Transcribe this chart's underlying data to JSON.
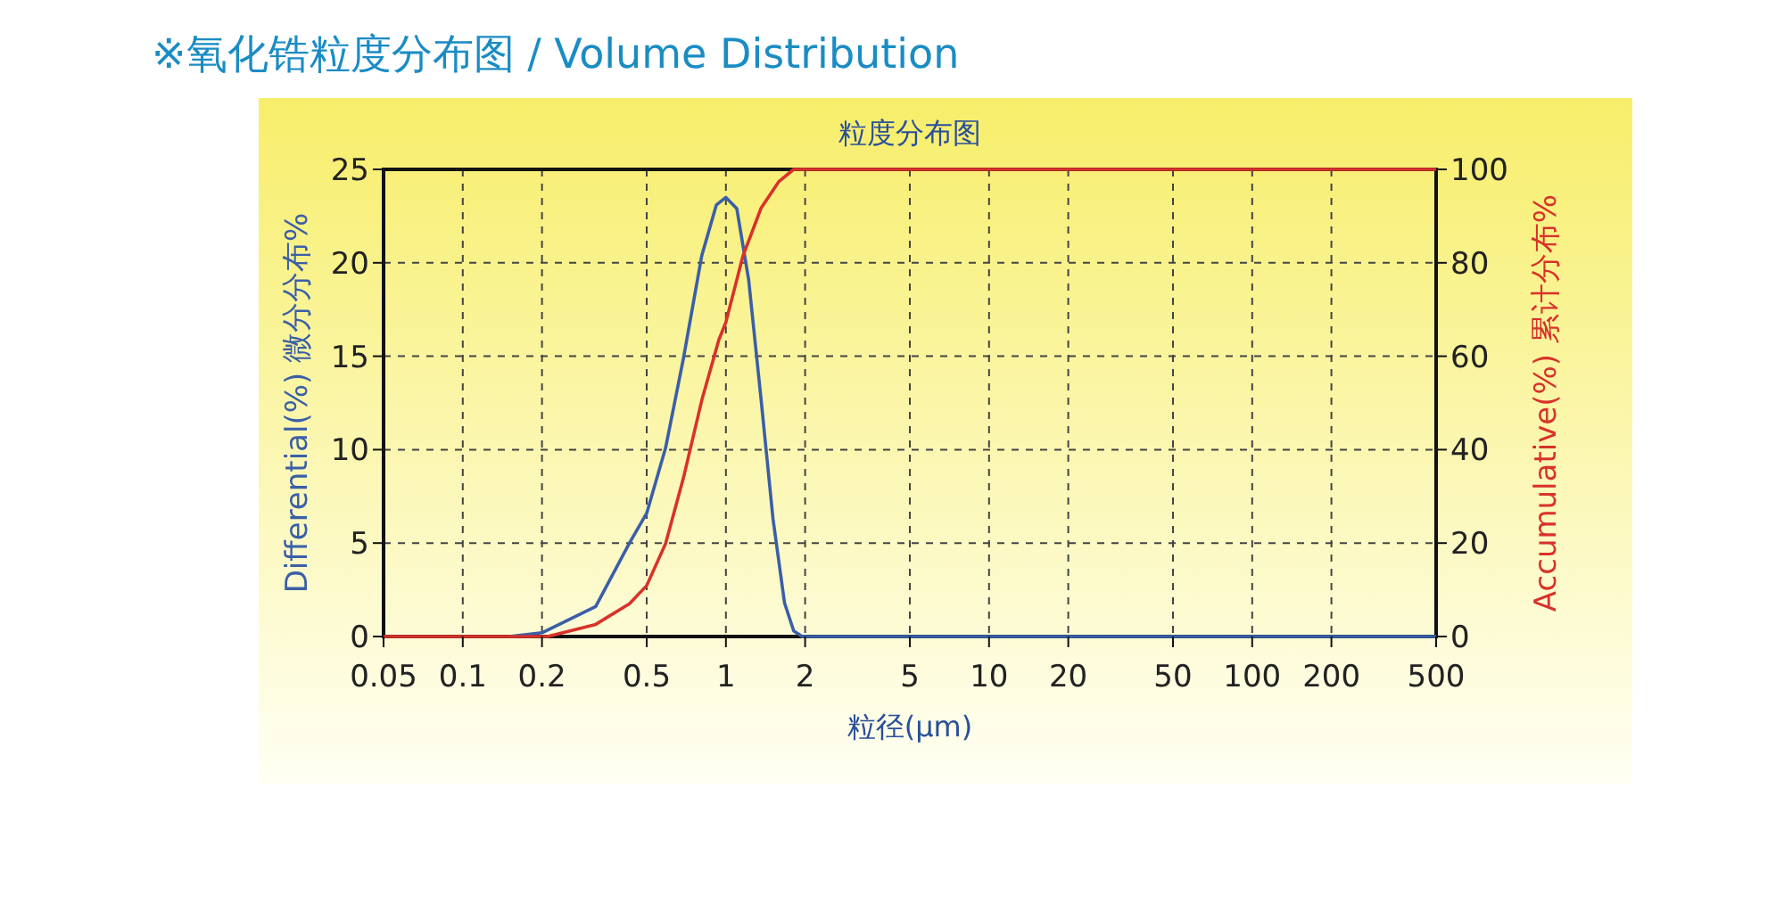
{
  "chart_data": {
    "type": "line",
    "title": "※氧化锆粒度分布图 / Volume Distribution",
    "subtitle": "粒度分布图",
    "xlabel": "粒径(μm)",
    "ylabel": "Differential(%) 微分分布%",
    "y2label": "Accumulative(%) 累计分布%",
    "log": "x",
    "grid": true,
    "xlim": [
      0.05,
      500
    ],
    "xticks": [
      0.05,
      0.1,
      0.2,
      0.5,
      1,
      2,
      5,
      10,
      20,
      50,
      100,
      200,
      500
    ],
    "ylim": [
      0,
      25
    ],
    "yticks": [
      0,
      5,
      10,
      15,
      20,
      25
    ],
    "y2lim": [
      0,
      100
    ],
    "y2ticks": [
      0,
      20,
      40,
      60,
      80,
      100
    ],
    "series": [
      {
        "color": "#3a5fa8",
        "x": [
          0.15,
          0.2,
          0.32,
          0.43,
          0.5,
          0.59,
          0.69,
          0.81,
          0.92,
          1,
          1.1,
          1.22,
          1.36,
          1.51,
          1.67,
          1.81,
          1.95,
          5,
          50,
          500
        ],
        "values": [
          0,
          0.2,
          1.6,
          5,
          6.6,
          10.1,
          14.9,
          20.4,
          23.1,
          23.5,
          22.9,
          19.1,
          12.7,
          6.3,
          1.8,
          0.3,
          0,
          0,
          0,
          0
        ]
      },
      {
        "color": "#d8322a",
        "axis": "y2",
        "x": [
          0.05,
          0.1,
          0.21,
          0.32,
          0.43,
          0.5,
          0.59,
          0.69,
          0.81,
          0.94,
          1,
          1.16,
          1.36,
          1.59,
          1.81,
          5,
          50,
          500
        ],
        "values": [
          0,
          0,
          0,
          2.6,
          7,
          10.9,
          19.9,
          34,
          50.6,
          63.5,
          67.3,
          81.4,
          91.7,
          97.4,
          100,
          100,
          100,
          100
        ]
      }
    ]
  }
}
